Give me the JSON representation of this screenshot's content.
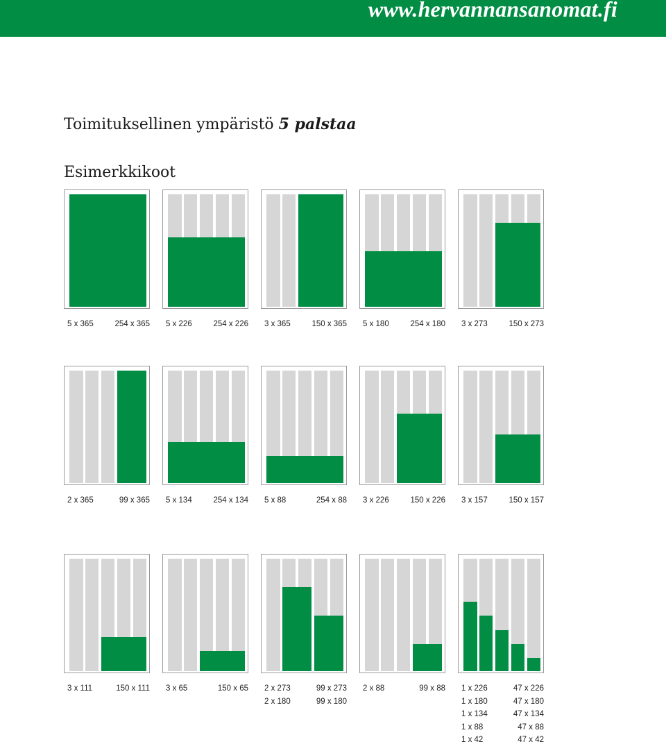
{
  "header": {
    "url": "www.hervannansanomat.fi"
  },
  "title": {
    "text": "Toimituksellinen ympäristö ",
    "emphasis": "5 palstaa"
  },
  "subtitle": "Esimerkkikoot",
  "colors": {
    "green": "#018d43",
    "column_gray": "#d6d6d6",
    "border": "#9a9a9a"
  },
  "rows": [
    {
      "thumbs": [
        {
          "blocks": [
            {
              "start": 0,
              "cols": 5,
              "height_mm": 365
            }
          ],
          "labels": [
            [
              "5 x 365",
              "254 x 365"
            ]
          ]
        },
        {
          "blocks": [
            {
              "start": 0,
              "cols": 5,
              "height_mm": 226
            }
          ],
          "labels": [
            [
              "5 x 226",
              "254 x 226"
            ]
          ]
        },
        {
          "blocks": [
            {
              "start": 2,
              "cols": 3,
              "height_mm": 365
            }
          ],
          "labels": [
            [
              "3 x 365",
              "150 x 365"
            ]
          ]
        },
        {
          "blocks": [
            {
              "start": 0,
              "cols": 5,
              "height_mm": 180
            }
          ],
          "labels": [
            [
              "5 x 180",
              "254 x 180"
            ]
          ]
        },
        {
          "blocks": [
            {
              "start": 2,
              "cols": 3,
              "height_mm": 273
            }
          ],
          "labels": [
            [
              "3 x 273",
              "150 x 273"
            ]
          ]
        }
      ]
    },
    {
      "thumbs": [
        {
          "blocks": [
            {
              "start": 3,
              "cols": 2,
              "height_mm": 365
            }
          ],
          "labels": [
            [
              "2 x 365",
              "99 x 365"
            ]
          ]
        },
        {
          "blocks": [
            {
              "start": 0,
              "cols": 5,
              "height_mm": 134
            }
          ],
          "labels": [
            [
              "5 x 134",
              "254 x 134"
            ]
          ]
        },
        {
          "blocks": [
            {
              "start": 0,
              "cols": 5,
              "height_mm": 88
            }
          ],
          "labels": [
            [
              "5 x 88",
              "254 x 88"
            ]
          ]
        },
        {
          "blocks": [
            {
              "start": 2,
              "cols": 3,
              "height_mm": 226
            }
          ],
          "labels": [
            [
              "3 x 226",
              "150 x 226"
            ]
          ]
        },
        {
          "blocks": [
            {
              "start": 2,
              "cols": 3,
              "height_mm": 157
            }
          ],
          "labels": [
            [
              "3 x 157",
              "150 x 157"
            ]
          ]
        }
      ]
    },
    {
      "thumbs": [
        {
          "blocks": [
            {
              "start": 2,
              "cols": 3,
              "height_mm": 111
            }
          ],
          "labels": [
            [
              "3 x 111",
              "150 x 111"
            ]
          ]
        },
        {
          "blocks": [
            {
              "start": 2,
              "cols": 3,
              "height_mm": 65
            }
          ],
          "labels": [
            [
              "3 x 65",
              "150 x 65"
            ]
          ]
        },
        {
          "blocks": [
            {
              "start": 1,
              "cols": 2,
              "height_mm": 273
            },
            {
              "start": 3,
              "cols": 2,
              "height_mm": 180
            }
          ],
          "labels": [
            [
              "2 x 273",
              "99 x 273"
            ],
            [
              "2 x 180",
              "99 x 180"
            ]
          ]
        },
        {
          "blocks": [
            {
              "start": 3,
              "cols": 2,
              "height_mm": 88
            }
          ],
          "labels": [
            [
              "2 x 88",
              "99 x 88"
            ]
          ]
        },
        {
          "blocks": [
            {
              "start": 0,
              "cols": 1,
              "height_mm": 226
            },
            {
              "start": 1,
              "cols": 1,
              "height_mm": 180
            },
            {
              "start": 2,
              "cols": 1,
              "height_mm": 134
            },
            {
              "start": 3,
              "cols": 1,
              "height_mm": 88
            },
            {
              "start": 4,
              "cols": 1,
              "height_mm": 42
            }
          ],
          "labels": [
            [
              "1 x 226",
              "47 x 226"
            ],
            [
              "1 x 180",
              "47 x 180"
            ],
            [
              "1 x 134",
              "47 x 134"
            ],
            [
              "1 x 88",
              "47 x 88"
            ],
            [
              "1 x 42",
              "47 x 42"
            ]
          ]
        }
      ]
    }
  ]
}
